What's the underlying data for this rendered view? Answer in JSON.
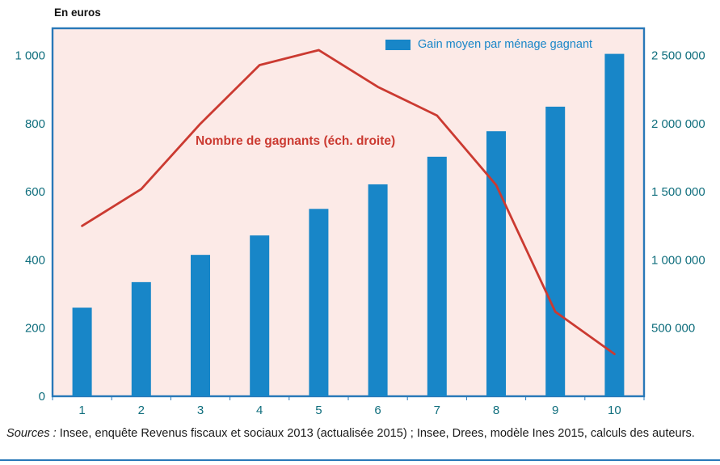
{
  "title": "En euros",
  "legend": {
    "label": "Gain moyen par ménage gagnant"
  },
  "line_label": "Nombre de gagnants (éch. droite)",
  "footer": {
    "sources_label": "Sources :",
    "sources_text": " Insee, enquête Revenus fiscaux et sociaux 2013 (actualisée 2015) ; Insee, Drees, modèle Ines 2015, calculs des auteurs."
  },
  "colors": {
    "bar": "#1886c8",
    "line": "#cb3a31",
    "plot_bg": "#fceae7",
    "border": "#2878b8",
    "axis_label": "#0f6e7d",
    "source_text": "#1a1a1a"
  },
  "chart_data": {
    "type": "bar+line",
    "title": "En euros",
    "categories": [
      "1",
      "2",
      "3",
      "4",
      "5",
      "6",
      "7",
      "8",
      "9",
      "10"
    ],
    "series": [
      {
        "name": "Gain moyen par ménage gagnant",
        "type": "bar",
        "axis": "left",
        "values": [
          260,
          335,
          415,
          472,
          550,
          622,
          703,
          778,
          850,
          1005
        ]
      },
      {
        "name": "Nombre de gagnants (éch. droite)",
        "type": "line",
        "axis": "right",
        "values": [
          1250000,
          1520000,
          2000000,
          2430000,
          2540000,
          2270000,
          2060000,
          1550000,
          620000,
          310000
        ]
      }
    ],
    "left_axis": {
      "label": "En euros",
      "ticks": [
        "0",
        "200",
        "400",
        "600",
        "800",
        "1 000"
      ],
      "tick_values": [
        0,
        200,
        400,
        600,
        800,
        1000
      ],
      "min": 0,
      "max": 1080
    },
    "right_axis": {
      "ticks": [
        "500 000",
        "1 000 000",
        "1 500 000",
        "2 000 000",
        "2 500 000"
      ],
      "tick_values": [
        500000,
        1000000,
        1500000,
        2000000,
        2500000
      ],
      "min": 0,
      "max": 2700000
    },
    "grid": false,
    "legend_position": "top-right-inside",
    "plot_background": "pink"
  }
}
